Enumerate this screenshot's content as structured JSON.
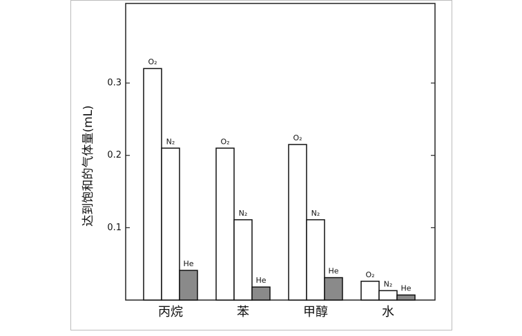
{
  "chart_data": {
    "type": "bar",
    "y_label": "达到饱和的气体量(mL)",
    "categories": [
      "丙烷",
      "苯",
      "甲醇",
      "水"
    ],
    "series": [
      {
        "name": "O₂",
        "color": "#ffffff",
        "values": [
          0.32,
          0.21,
          0.215,
          0.026
        ]
      },
      {
        "name": "N₂",
        "color": "#ffffff",
        "values": [
          0.21,
          0.111,
          0.111,
          0.013
        ]
      },
      {
        "name": "He",
        "color": "#8a8a8a",
        "values": [
          0.041,
          0.018,
          0.031,
          0.007
        ]
      }
    ],
    "ylim": [
      0,
      0.41
    ],
    "yticks": [
      0.1,
      0.2,
      0.3
    ]
  }
}
